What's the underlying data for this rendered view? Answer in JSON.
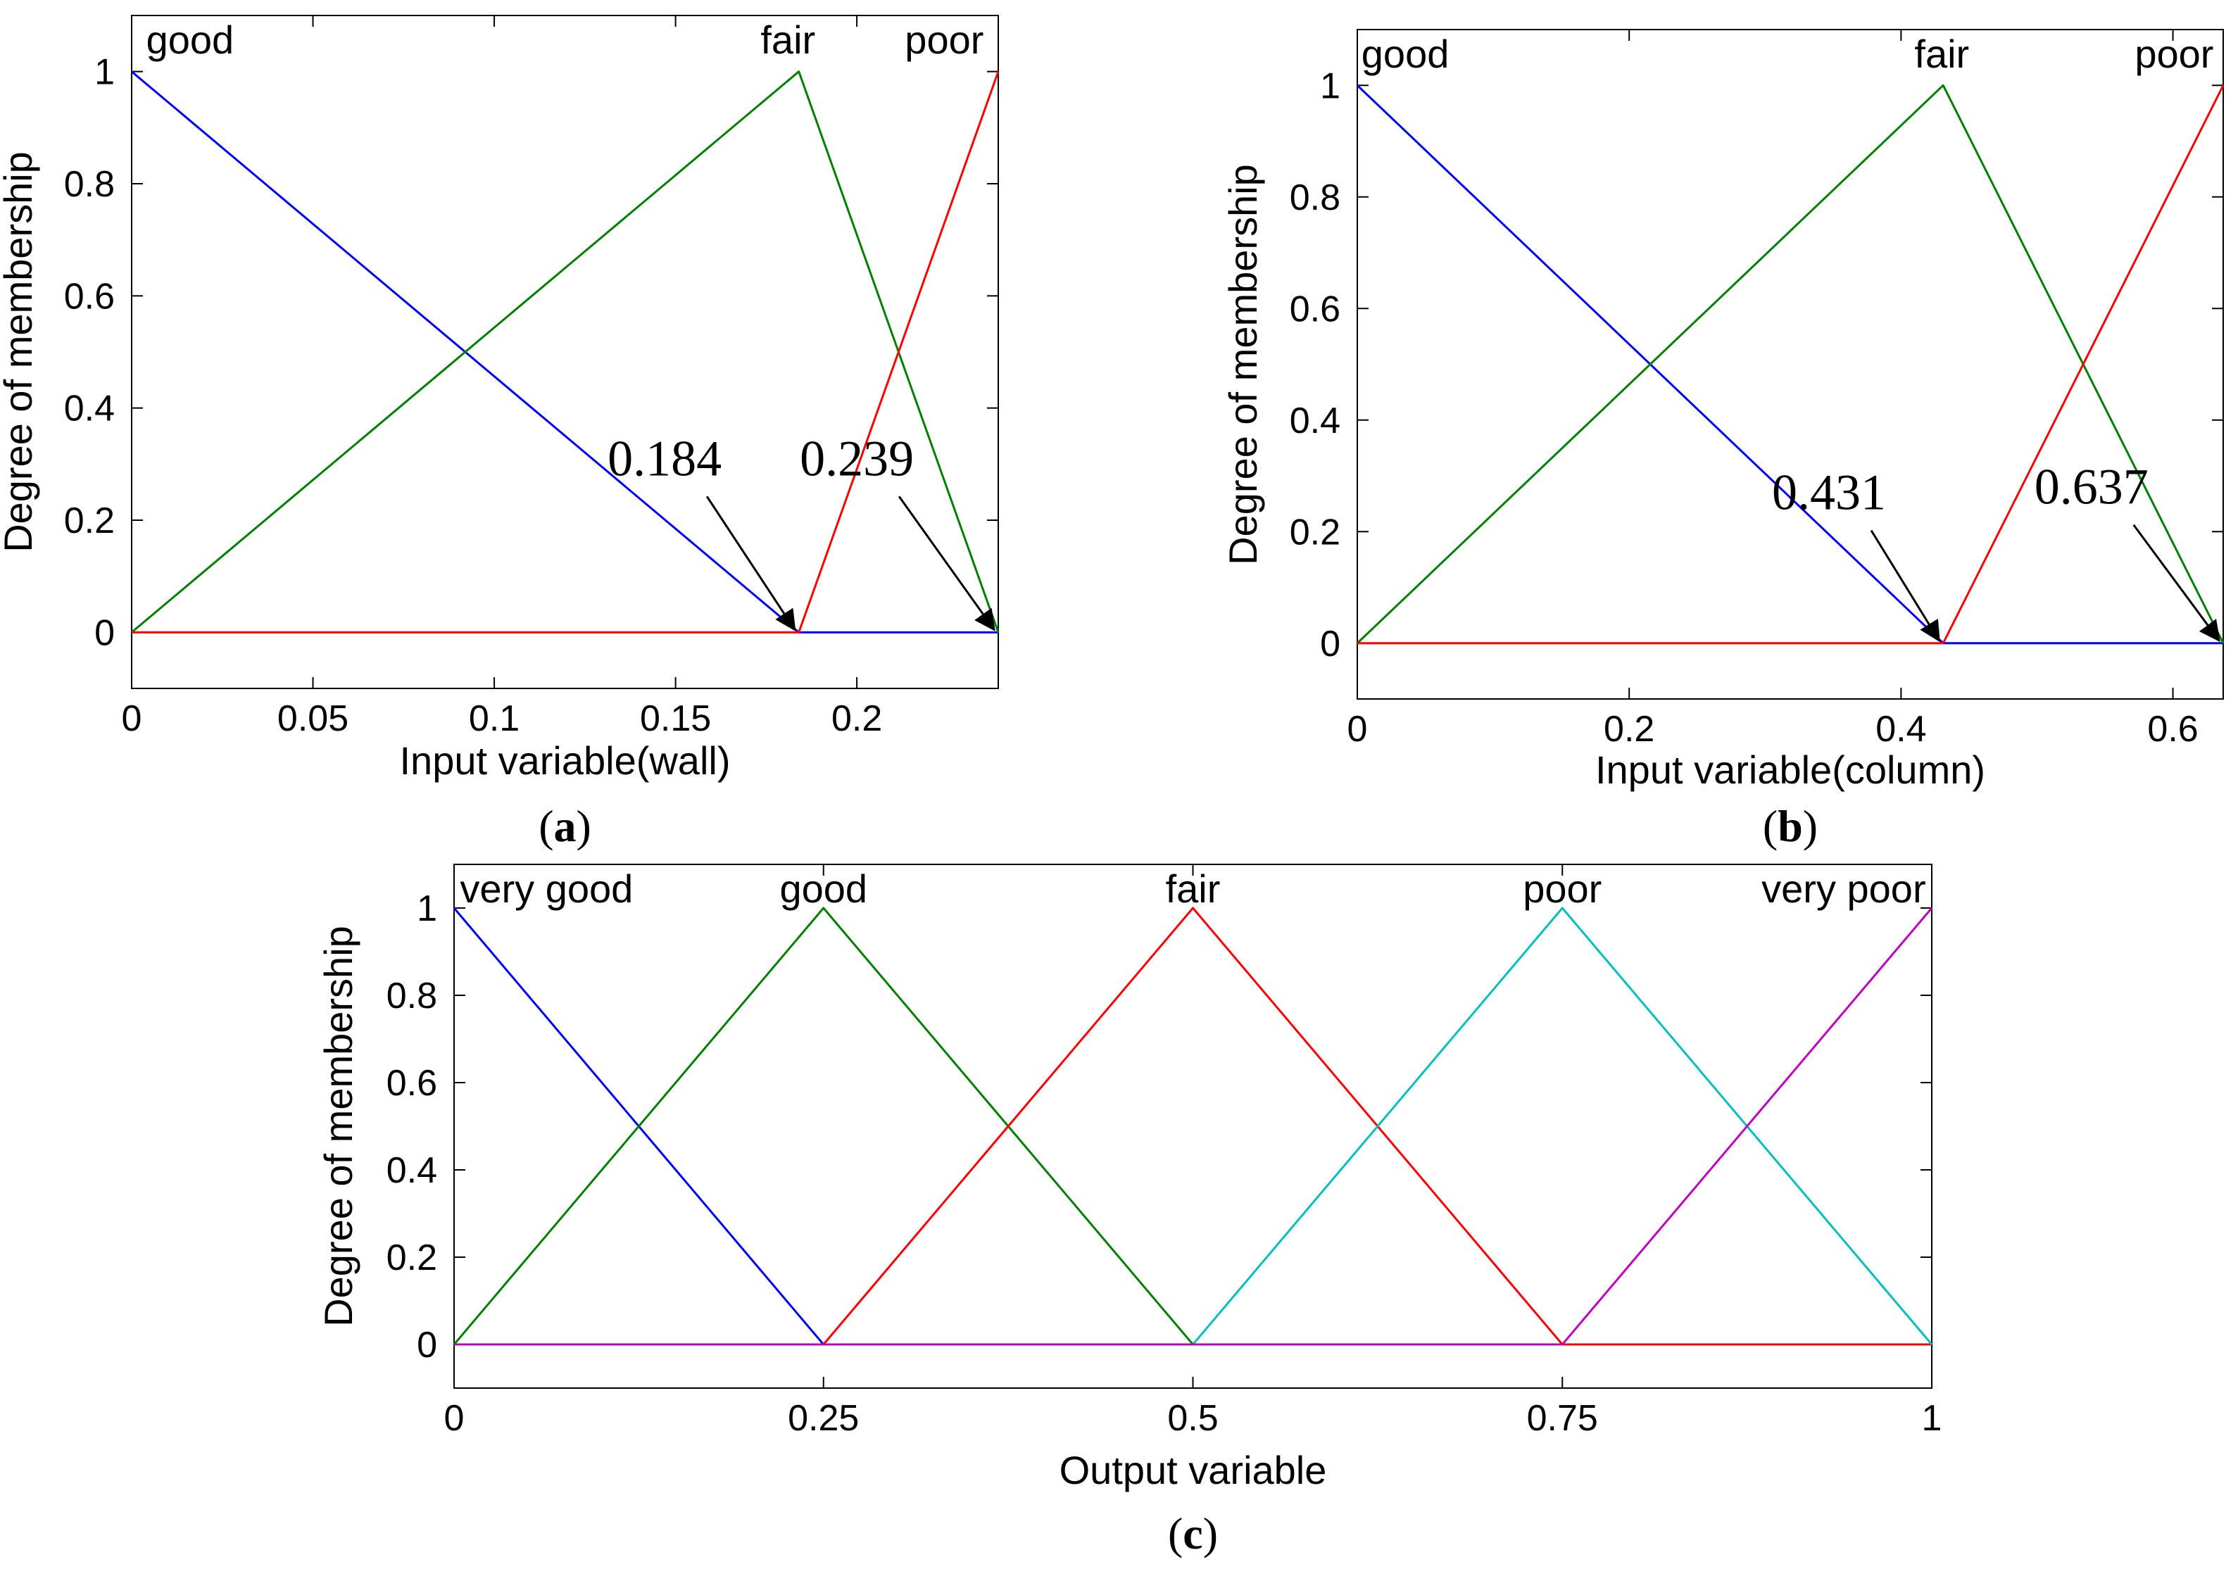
{
  "chart_data": [
    {
      "type": "line",
      "panel": "(a)",
      "panel_letter": "a",
      "xlabel": "Input variable(wall)",
      "ylabel": "Degree of membership",
      "xlim": [
        0,
        0.239
      ],
      "ylim": [
        -0.1,
        1.1
      ],
      "xticks": [
        0,
        0.05,
        0.1,
        0.15,
        0.2
      ],
      "xtick_labels": [
        "0",
        "0.05",
        "0.1",
        "0.15",
        "0.2"
      ],
      "yticks": [
        0,
        0.2,
        0.4,
        0.6,
        0.8,
        1
      ],
      "ytick_labels": [
        "0",
        "0.2",
        "0.4",
        "0.6",
        "0.8",
        "1"
      ],
      "series": [
        {
          "name": "good",
          "color": "#0000ff",
          "x": [
            0,
            0.184,
            0.239
          ],
          "y": [
            1,
            0,
            0
          ]
        },
        {
          "name": "fair",
          "color": "#007f00",
          "x": [
            0,
            0.184,
            0.239
          ],
          "y": [
            0,
            1,
            0
          ]
        },
        {
          "name": "poor",
          "color": "#ff0000",
          "x": [
            0,
            0.184,
            0.239
          ],
          "y": [
            0,
            0,
            1
          ]
        }
      ],
      "mf_labels": [
        {
          "text": "good",
          "x": 0.004,
          "anchor": "start"
        },
        {
          "text": "fair",
          "x": 0.181,
          "anchor": "middle"
        },
        {
          "text": "poor",
          "x": 0.235,
          "anchor": "end"
        }
      ],
      "annotations": [
        {
          "text": "0.184",
          "x": 0.184,
          "label_x": 0.147,
          "label_y": 0.28
        },
        {
          "text": "0.239",
          "x": 0.239,
          "label_x": 0.2,
          "label_y": 0.28
        }
      ]
    },
    {
      "type": "line",
      "panel": "(b)",
      "panel_letter": "b",
      "xlabel": "Input variable(column)",
      "ylabel": "Degree of membership",
      "xlim": [
        0,
        0.637
      ],
      "ylim": [
        -0.1,
        1.1
      ],
      "xticks": [
        0,
        0.2,
        0.4,
        0.6
      ],
      "xtick_labels": [
        "0",
        "0.2",
        "0.4",
        "0.6"
      ],
      "yticks": [
        0,
        0.2,
        0.4,
        0.6,
        0.8,
        1
      ],
      "ytick_labels": [
        "0",
        "0.2",
        "0.4",
        "0.6",
        "0.8",
        "1"
      ],
      "series": [
        {
          "name": "good",
          "color": "#0000ff",
          "x": [
            0,
            0.431,
            0.637
          ],
          "y": [
            1,
            0,
            0
          ]
        },
        {
          "name": "fair",
          "color": "#007f00",
          "x": [
            0,
            0.431,
            0.637
          ],
          "y": [
            0,
            1,
            0
          ]
        },
        {
          "name": "poor",
          "color": "#ff0000",
          "x": [
            0,
            0.431,
            0.637
          ],
          "y": [
            0,
            0,
            1
          ]
        }
      ],
      "mf_labels": [
        {
          "text": "good",
          "x": 0.003,
          "anchor": "start"
        },
        {
          "text": "fair",
          "x": 0.43,
          "anchor": "middle"
        },
        {
          "text": "poor",
          "x": 0.63,
          "anchor": "end"
        }
      ],
      "annotations": [
        {
          "text": "0.431",
          "x": 0.431,
          "label_x": 0.347,
          "label_y": 0.24
        },
        {
          "text": "0.637",
          "x": 0.637,
          "label_x": 0.54,
          "label_y": 0.25
        }
      ]
    },
    {
      "type": "line",
      "panel": "(c)",
      "panel_letter": "c",
      "xlabel": "Output variable",
      "ylabel": "Degree of membership",
      "xlim": [
        0,
        1
      ],
      "ylim": [
        -0.1,
        1.1
      ],
      "xticks": [
        0,
        0.25,
        0.5,
        0.75,
        1
      ],
      "xtick_labels": [
        "0",
        "0.25",
        "0.5",
        "0.75",
        "1"
      ],
      "yticks": [
        0,
        0.2,
        0.4,
        0.6,
        0.8,
        1
      ],
      "ytick_labels": [
        "0",
        "0.2",
        "0.4",
        "0.6",
        "0.8",
        "1"
      ],
      "series": [
        {
          "name": "very good",
          "color": "#0000ff",
          "x": [
            0,
            0.25,
            1
          ],
          "y": [
            1,
            0,
            0
          ]
        },
        {
          "name": "good",
          "color": "#007f00",
          "x": [
            0,
            0.25,
            0.5,
            1
          ],
          "y": [
            0,
            1,
            0,
            0
          ]
        },
        {
          "name": "fair",
          "color": "#ff0000",
          "x": [
            0,
            0.25,
            0.5,
            0.75,
            1
          ],
          "y": [
            0,
            0,
            1,
            0,
            0
          ]
        },
        {
          "name": "poor",
          "color": "#00bfbf",
          "x": [
            0,
            0.5,
            0.75,
            1
          ],
          "y": [
            0,
            0,
            1,
            0
          ]
        },
        {
          "name": "very poor",
          "color": "#bf00bf",
          "x": [
            0,
            0.75,
            1
          ],
          "y": [
            0,
            0,
            1
          ]
        }
      ],
      "mf_labels": [
        {
          "text": "very good",
          "x": 0.004,
          "anchor": "start"
        },
        {
          "text": "good",
          "x": 0.25,
          "anchor": "middle"
        },
        {
          "text": "fair",
          "x": 0.5,
          "anchor": "middle"
        },
        {
          "text": "poor",
          "x": 0.75,
          "anchor": "middle"
        },
        {
          "text": "very poor",
          "x": 0.996,
          "anchor": "end"
        }
      ],
      "annotations": []
    }
  ]
}
